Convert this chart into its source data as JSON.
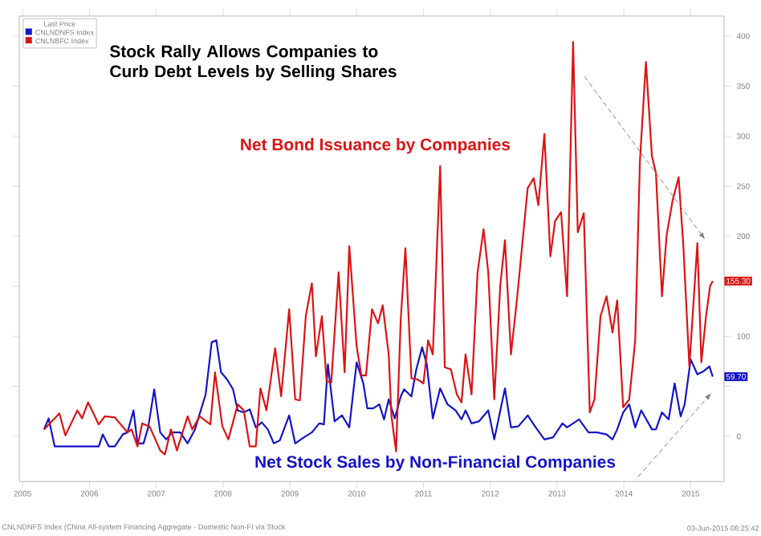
{
  "chart_data": {
    "type": "line",
    "title": "Stock Rally Allows Companies to\nCurb Debt Levels by Selling Shares",
    "legend_title": "Last Price",
    "legend": "top left",
    "grid": false,
    "marker": "none",
    "line_style": "solid",
    "xlim": [
      2004.95,
      2015.5
    ],
    "ylim": [
      -45,
      420
    ],
    "xticks": [
      2005,
      2006,
      2007,
      2008,
      2009,
      2010,
      2011,
      2012,
      2013,
      2014,
      2015
    ],
    "yticks": [
      0,
      {
        "value": 50,
        "label": null
      },
      100,
      {
        "value": 150,
        "label": null
      },
      200,
      250,
      300,
      350,
      400
    ],
    "series": [
      {
        "name": "CNLNDNFS Index",
        "color": "#1414c8",
        "x": [
          2005.32,
          2005.39,
          2005.48,
          2006.14,
          2006.2,
          2006.29,
          2006.38,
          2006.5,
          2006.57,
          2006.66,
          2006.72,
          2006.81,
          2006.88,
          2006.97,
          2007.06,
          2007.15,
          2007.24,
          2007.36,
          2007.47,
          2007.58,
          2007.74,
          2007.83,
          2007.9,
          2007.97,
          2008.06,
          2008.15,
          2008.22,
          2008.31,
          2008.4,
          2008.49,
          2008.58,
          2008.67,
          2008.76,
          2008.85,
          2008.99,
          2009.08,
          2009.21,
          2009.33,
          2009.44,
          2009.51,
          2009.57,
          2009.67,
          2009.78,
          2009.89,
          2010.0,
          2010.1,
          2010.16,
          2010.25,
          2010.34,
          2010.41,
          2010.48,
          2010.57,
          2010.66,
          2010.71,
          2010.82,
          2010.89,
          2010.98,
          2011.05,
          2011.14,
          2011.25,
          2011.36,
          2011.48,
          2011.57,
          2011.63,
          2011.72,
          2011.83,
          2011.97,
          2012.06,
          2012.22,
          2012.31,
          2012.42,
          2012.56,
          2012.67,
          2012.81,
          2012.94,
          2013.08,
          2013.15,
          2013.33,
          2013.47,
          2013.6,
          2013.74,
          2013.83,
          2013.9,
          2013.99,
          2014.08,
          2014.17,
          2014.26,
          2014.42,
          2014.48,
          2014.57,
          2014.67,
          2014.76,
          2014.85,
          2014.91,
          2015.0,
          2015.1,
          2015.19,
          2015.28,
          2015.33
        ],
        "values": [
          7,
          18,
          -10,
          -10,
          2,
          -10,
          -10,
          2,
          4,
          26,
          -7,
          -7,
          9,
          47,
          4,
          -3,
          4,
          4,
          -7,
          7,
          42,
          94,
          96,
          64,
          57,
          47,
          26,
          24,
          27,
          9,
          14,
          7,
          -7,
          -4,
          21,
          -7,
          -1,
          4,
          13,
          12,
          72,
          15,
          21,
          9,
          74,
          53,
          28,
          28,
          32,
          17,
          37,
          18,
          40,
          47,
          40,
          66,
          89,
          72,
          18,
          48,
          32,
          26,
          17,
          26,
          13,
          15,
          26,
          -3,
          48,
          9,
          10,
          21,
          10,
          -3,
          -1,
          13,
          9,
          17,
          4,
          4,
          2,
          -3,
          7,
          24,
          32,
          9,
          26,
          7,
          7,
          24,
          17,
          53,
          20,
          32,
          77,
          62,
          65,
          70,
          59.7
        ],
        "value_labels": [
          null,
          null,
          null,
          null,
          null,
          null,
          null,
          null,
          null,
          null,
          null,
          null,
          null,
          null,
          null,
          null,
          null,
          null,
          null,
          null,
          null,
          null,
          null,
          null,
          null,
          null,
          null,
          null,
          null,
          null,
          null,
          null,
          null,
          null,
          null,
          null,
          null,
          null,
          null,
          null,
          null,
          null,
          null,
          null,
          null,
          null,
          null,
          null,
          null,
          null,
          null,
          null,
          null,
          null,
          null,
          null,
          null,
          null,
          null,
          null,
          null,
          null,
          null,
          null,
          null,
          null,
          null,
          null,
          null,
          null,
          null,
          null,
          null,
          null,
          null,
          null,
          null,
          null,
          null,
          null,
          null,
          null,
          null,
          null,
          null,
          null,
          null,
          null,
          null,
          null,
          null,
          null,
          null,
          null,
          null,
          null,
          null,
          null,
          "59.70"
        ]
      },
      {
        "name": "CNLNBFC Index",
        "color": "#dc1414",
        "x": [
          2005.32,
          2005.55,
          2005.64,
          2005.82,
          2005.89,
          2005.98,
          2006.14,
          2006.23,
          2006.38,
          2006.57,
          2006.63,
          2006.72,
          2006.79,
          2006.9,
          2007.06,
          2007.13,
          2007.22,
          2007.31,
          2007.47,
          2007.54,
          2007.65,
          2007.81,
          2007.88,
          2007.99,
          2008.08,
          2008.22,
          2008.31,
          2008.4,
          2008.49,
          2008.56,
          2008.65,
          2008.78,
          2008.87,
          2008.99,
          2009.08,
          2009.15,
          2009.24,
          2009.33,
          2009.39,
          2009.48,
          2009.55,
          2009.62,
          2009.73,
          2009.82,
          2009.89,
          2010.0,
          2010.07,
          2010.14,
          2010.23,
          2010.32,
          2010.39,
          2010.48,
          2010.52,
          2010.59,
          2010.66,
          2010.73,
          2010.82,
          2010.91,
          2011.0,
          2011.07,
          2011.14,
          2011.25,
          2011.32,
          2011.41,
          2011.5,
          2011.57,
          2011.63,
          2011.72,
          2011.81,
          2011.9,
          2011.97,
          2012.06,
          2012.15,
          2012.22,
          2012.31,
          2012.4,
          2012.56,
          2012.65,
          2012.72,
          2012.81,
          2012.9,
          2012.97,
          2013.06,
          2013.15,
          2013.24,
          2013.31,
          2013.4,
          2013.49,
          2013.56,
          2013.65,
          2013.74,
          2013.83,
          2013.9,
          2013.99,
          2014.08,
          2014.17,
          2014.24,
          2014.33,
          2014.42,
          2014.48,
          2014.57,
          2014.64,
          2014.73,
          2014.82,
          2014.89,
          2014.98,
          2015.1,
          2015.16,
          2015.23,
          2015.29,
          2015.33
        ],
        "values": [
          7,
          23,
          1,
          26,
          18,
          34,
          12,
          20,
          19,
          4,
          7,
          -10,
          13,
          10,
          -14,
          -18,
          7,
          -14,
          20,
          7,
          20,
          12,
          64,
          10,
          -3,
          32,
          26,
          -10,
          -10,
          48,
          26,
          88,
          40,
          127,
          37,
          36,
          121,
          153,
          80,
          120,
          55,
          54,
          164,
          64,
          190,
          90,
          61,
          61,
          127,
          113,
          131,
          82,
          21,
          -15,
          117,
          188,
          58,
          57,
          53,
          96,
          82,
          270,
          69,
          67,
          42,
          34,
          82,
          42,
          164,
          207,
          164,
          37,
          151,
          196,
          82,
          137,
          248,
          258,
          231,
          302,
          180,
          215,
          224,
          140,
          394,
          204,
          223,
          24,
          37,
          120,
          140,
          104,
          136,
          29,
          37,
          96,
          275,
          374,
          280,
          263,
          140,
          201,
          236,
          259,
          191,
          70,
          193,
          74,
          120,
          150,
          155.3
        ],
        "value_labels": [
          null,
          null,
          null,
          null,
          null,
          null,
          null,
          null,
          null,
          null,
          null,
          null,
          null,
          null,
          null,
          null,
          null,
          null,
          null,
          null,
          null,
          null,
          null,
          null,
          null,
          null,
          null,
          null,
          null,
          null,
          null,
          null,
          null,
          null,
          null,
          null,
          null,
          null,
          null,
          null,
          null,
          null,
          null,
          null,
          null,
          null,
          null,
          null,
          null,
          null,
          null,
          null,
          null,
          null,
          null,
          null,
          null,
          null,
          null,
          null,
          null,
          null,
          null,
          null,
          null,
          null,
          null,
          null,
          null,
          null,
          null,
          null,
          null,
          null,
          null,
          null,
          null,
          null,
          null,
          null,
          null,
          null,
          null,
          null,
          null,
          null,
          null,
          null,
          null,
          null,
          null,
          null,
          null,
          null,
          null,
          null,
          null,
          null,
          null,
          null,
          null,
          null,
          null,
          null,
          null,
          null,
          null,
          null,
          null,
          null,
          "155.30"
        ]
      }
    ],
    "annotations": [
      "Net Stock Sales by Non-Financial Companies",
      "Net Bond Issuance by Companies",
      "CNLNDNFS Index (China All-system Financing Aggregate - Domestic Non-FI via Stock",
      "03-Jun-2015 08:25:42"
    ]
  }
}
